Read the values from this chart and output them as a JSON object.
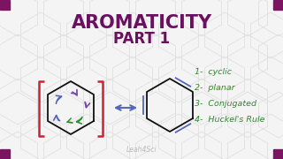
{
  "title_line1": "AROMATICITY",
  "title_line2": "PART 1",
  "title_color": "#6B1060",
  "bg_color": "#F4F4F4",
  "corner_sq_color": "#7B1562",
  "bracket_color": "#CC2233",
  "list_items": [
    "1-  cyclic",
    "2-  planar",
    "3-  Conjugated",
    "4-  Huckel's Rule"
  ],
  "list_color": "#2D8C2D",
  "arrow_color": "#5566BB",
  "watermark": "Leah4Sci",
  "watermark_color": "#BBBBBB",
  "hex_pattern_color": "#E0E0E0",
  "left_hex_arrow_colors": [
    "#7744AA",
    "#5566BB",
    "#2D8C2D"
  ],
  "double_bond_color": "#5566BB"
}
